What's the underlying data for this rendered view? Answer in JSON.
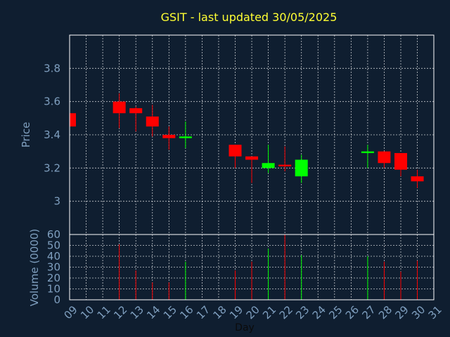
{
  "chart_data": {
    "type": "candlestick",
    "title": "GSIT - last updated 30/05/2025",
    "price_ylabel": "Price",
    "volume_ylabel": "Volume (0000)",
    "xlabel": "Day",
    "price_ylim": [
      2.8,
      4.0
    ],
    "price_ticks": [
      "3",
      "3.2",
      "3.4",
      "3.6",
      "3.8"
    ],
    "price_tick_values": [
      3.0,
      3.2,
      3.4,
      3.6,
      3.8
    ],
    "volume_ylim": [
      0,
      60
    ],
    "volume_ticks": [
      "0",
      "10",
      "20",
      "30",
      "40",
      "50",
      "60"
    ],
    "volume_tick_values": [
      0,
      10,
      20,
      30,
      40,
      50,
      60
    ],
    "x_ticks": [
      "09",
      "10",
      "11",
      "12",
      "13",
      "14",
      "15",
      "16",
      "17",
      "18",
      "19",
      "20",
      "21",
      "22",
      "23",
      "24",
      "25",
      "26",
      "27",
      "28",
      "29",
      "30",
      "31"
    ],
    "grid": true,
    "up_color": "#00ff00",
    "down_color": "#ff0000",
    "candles": [
      {
        "day": "09",
        "open": 3.53,
        "close": 3.45,
        "high": 3.53,
        "low": 3.45
      },
      {
        "day": "12",
        "open": 3.6,
        "close": 3.53,
        "high": 3.65,
        "low": 3.44
      },
      {
        "day": "13",
        "open": 3.56,
        "close": 3.53,
        "high": 3.57,
        "low": 3.42
      },
      {
        "day": "14",
        "open": 3.51,
        "close": 3.45,
        "high": 3.58,
        "low": 3.39
      },
      {
        "day": "15",
        "open": 3.4,
        "close": 3.38,
        "high": 3.45,
        "low": 3.31
      },
      {
        "day": "16",
        "open": 3.38,
        "close": 3.39,
        "high": 3.48,
        "low": 3.32
      },
      {
        "day": "19",
        "open": 3.34,
        "close": 3.27,
        "high": 3.34,
        "low": 3.2
      },
      {
        "day": "20",
        "open": 3.27,
        "close": 3.25,
        "high": 3.27,
        "low": 3.11
      },
      {
        "day": "21",
        "open": 3.2,
        "close": 3.23,
        "high": 3.34,
        "low": 3.17
      },
      {
        "day": "22",
        "open": 3.22,
        "close": 3.21,
        "high": 3.33,
        "low": 3.18
      },
      {
        "day": "23",
        "open": 3.15,
        "close": 3.25,
        "high": 3.28,
        "low": 3.11
      },
      {
        "day": "27",
        "open": 3.29,
        "close": 3.3,
        "high": 3.34,
        "low": 3.2
      },
      {
        "day": "28",
        "open": 3.3,
        "close": 3.23,
        "high": 3.3,
        "low": 3.2
      },
      {
        "day": "29",
        "open": 3.29,
        "close": 3.19,
        "high": 3.29,
        "low": 3.15
      },
      {
        "day": "30",
        "open": 3.15,
        "close": 3.12,
        "high": 3.19,
        "low": 3.08
      }
    ],
    "volume": [
      {
        "day": "12",
        "value": 51,
        "direction": "down"
      },
      {
        "day": "13",
        "value": 27,
        "direction": "down"
      },
      {
        "day": "14",
        "value": 16,
        "direction": "down"
      },
      {
        "day": "15",
        "value": 16,
        "direction": "down"
      },
      {
        "day": "16",
        "value": 35,
        "direction": "up"
      },
      {
        "day": "19",
        "value": 27,
        "direction": "down"
      },
      {
        "day": "20",
        "value": 35,
        "direction": "down"
      },
      {
        "day": "21",
        "value": 47,
        "direction": "up"
      },
      {
        "day": "22",
        "value": 60,
        "direction": "down"
      },
      {
        "day": "23",
        "value": 41,
        "direction": "up"
      },
      {
        "day": "27",
        "value": 40,
        "direction": "up"
      },
      {
        "day": "28",
        "value": 35,
        "direction": "down"
      },
      {
        "day": "29",
        "value": 26,
        "direction": "down"
      },
      {
        "day": "30",
        "value": 36,
        "direction": "down"
      }
    ]
  }
}
